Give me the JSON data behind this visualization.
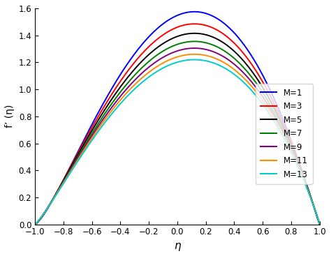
{
  "xlabel": "η",
  "ylabel": "f’ (η)",
  "xlim": [
    -1,
    1
  ],
  "ylim": [
    0,
    1.6
  ],
  "xticks": [
    -1,
    -0.8,
    -0.6,
    -0.4,
    -0.2,
    0,
    0.2,
    0.4,
    0.6,
    0.8,
    1
  ],
  "yticks": [
    0,
    0.2,
    0.4,
    0.6,
    0.8,
    1,
    1.2,
    1.4,
    1.6
  ],
  "M_values": [
    1,
    3,
    5,
    7,
    9,
    11,
    13
  ],
  "colors": [
    "#0000FF",
    "#FF0000",
    "#000000",
    "#008000",
    "#800080",
    "#FF8C00",
    "#00CCCC"
  ],
  "legend_labels": [
    "M=1",
    "M=3",
    "M=5",
    "M=7",
    "M=9",
    "M=11",
    "M=13"
  ],
  "peak_vals": [
    1.575,
    1.485,
    1.415,
    1.355,
    1.305,
    1.26,
    1.22
  ],
  "peak_pos": [
    0.12,
    0.12,
    0.12,
    0.12,
    0.12,
    0.12,
    0.12
  ],
  "asym_pow": [
    1.35,
    1.3,
    1.27,
    1.25,
    1.23,
    1.21,
    1.2
  ],
  "background_color": "white"
}
